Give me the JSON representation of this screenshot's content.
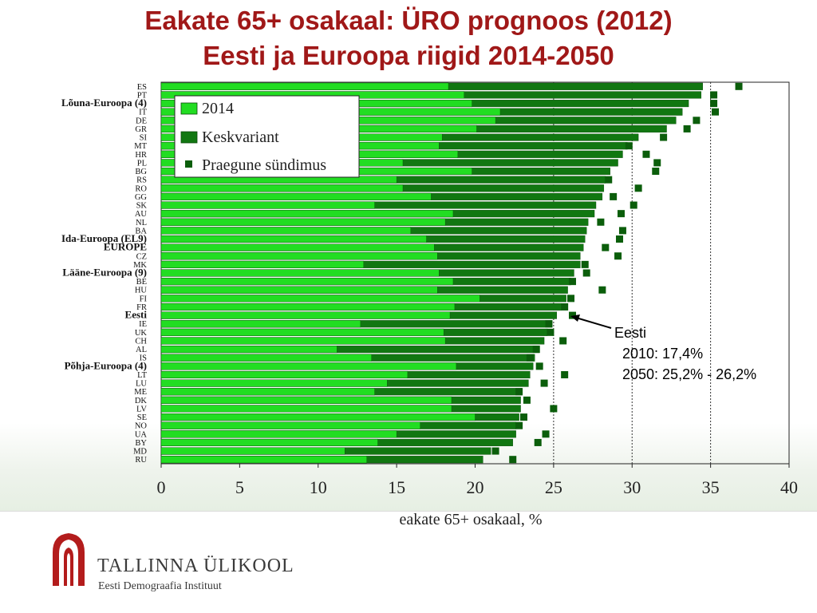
{
  "title": {
    "line1": "Eakate 65+ osakaal: ÜRO prognoos (2012)",
    "line2": "Eesti ja Euroopa riigid 2014-2050"
  },
  "annotation": {
    "label": "Eesti",
    "line1": "2010: 17,4%",
    "line2": "2050: 25,2% - 26,2%"
  },
  "institution": {
    "name": "TALLINNA ÜLIKOOL",
    "subtitle": "Eesti Demograafia Instituut"
  },
  "colors": {
    "title": "#a01818",
    "bar_2014": "#22dd22",
    "bar_medium": "#117711",
    "marker": "#0b5e0b"
  },
  "chart_data": {
    "type": "bar",
    "orientation": "horizontal",
    "xlabel": "eakate 65+ osakaal, %",
    "xlim": [
      0,
      40
    ],
    "xticks": [
      0,
      5,
      10,
      15,
      20,
      25,
      30,
      35,
      40
    ],
    "reference_lines": [
      25,
      30,
      35
    ],
    "categories": [
      "ES",
      "PT",
      "Lõuna-Euroopa (4)",
      "IT",
      "DE",
      "GR",
      "SI",
      "MT",
      "HR",
      "PL",
      "BG",
      "RS",
      "RO",
      "GG",
      "SK",
      "AU",
      "NL",
      "BA",
      "Ida-Euroopa (EL9)",
      "EUROPE",
      "CZ",
      "MK",
      "Lääne-Euroopa (9)",
      "BE",
      "HU",
      "FI",
      "FR",
      "Eesti",
      "IE",
      "UK",
      "CH",
      "AL",
      "IS",
      "Põhja-Euroopa (4)",
      "LT",
      "LU",
      "ME",
      "DK",
      "LV",
      "SE",
      "NO",
      "UA",
      "BY",
      "MD",
      "RU"
    ],
    "highlight_labels": [
      "Lõuna-Euroopa (4)",
      "Ida-Euroopa (EL9)",
      "EUROPE",
      "Lääne-Euroopa (9)",
      "Eesti",
      "Põhja-Euroopa (4)"
    ],
    "legend_position": "top-left",
    "series": [
      {
        "name": "2014",
        "marker": "bar",
        "values": [
          18.3,
          19.3,
          19.8,
          21.6,
          21.3,
          20.1,
          17.9,
          17.7,
          18.9,
          15.4,
          19.8,
          15.0,
          15.4,
          17.2,
          13.6,
          18.6,
          18.1,
          15.9,
          16.9,
          17.4,
          17.6,
          12.9,
          17.7,
          18.6,
          17.6,
          20.3,
          18.7,
          18.4,
          12.7,
          18.0,
          18.1,
          11.2,
          13.4,
          18.8,
          15.7,
          14.4,
          13.6,
          18.5,
          18.5,
          20.0,
          16.5,
          15.0,
          13.8,
          11.7,
          13.1
        ]
      },
      {
        "name": "Keskvariant",
        "marker": "bar",
        "values": [
          34.5,
          34.4,
          33.6,
          33.2,
          32.8,
          32.2,
          30.4,
          29.7,
          29.4,
          29.1,
          28.6,
          28.3,
          28.2,
          28.1,
          27.7,
          27.6,
          27.2,
          27.1,
          27.0,
          26.9,
          26.7,
          26.7,
          26.3,
          26.1,
          25.9,
          25.8,
          25.5,
          25.2,
          24.9,
          24.6,
          24.4,
          24.1,
          23.8,
          23.7,
          23.5,
          23.4,
          23.0,
          22.9,
          22.9,
          22.8,
          22.6,
          22.6,
          22.4,
          21.0,
          20.5
        ]
      },
      {
        "name": "Praegune sündimus",
        "marker": "square",
        "values": [
          36.8,
          35.2,
          35.2,
          35.3,
          34.1,
          33.5,
          32.0,
          29.8,
          30.9,
          31.6,
          31.5,
          28.5,
          30.4,
          28.8,
          30.1,
          29.3,
          28.0,
          29.4,
          29.2,
          28.3,
          29.1,
          27.0,
          27.1,
          26.2,
          28.1,
          26.1,
          25.7,
          26.2,
          24.7,
          24.8,
          25.6,
          23.9,
          23.5,
          24.1,
          25.7,
          24.4,
          22.8,
          23.3,
          25.0,
          23.1,
          22.8,
          24.5,
          24.0,
          21.3,
          22.4
        ]
      }
    ]
  }
}
